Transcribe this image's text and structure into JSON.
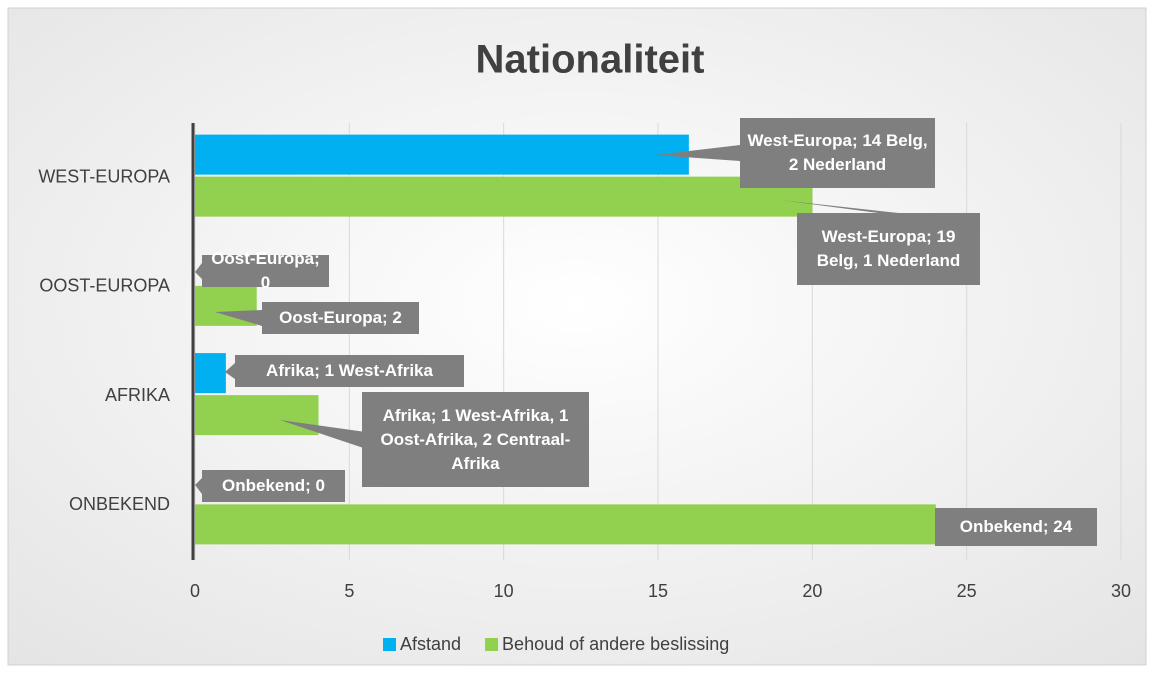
{
  "chart_data": {
    "type": "bar",
    "orientation": "horizontal",
    "title": "Nationaliteit",
    "categories": [
      "WEST-EUROPA",
      "OOST-EUROPA",
      "AFRIKA",
      "ONBEKEND"
    ],
    "series": [
      {
        "name": "Afstand",
        "color": "#00b0f0",
        "values": [
          16,
          0,
          1,
          0
        ],
        "value_labels": [
          "West-Europa; 14 Belg, 2 Nederland",
          "Oost-Europa; 0",
          "Afrika; 1 West-Afrika",
          "Onbekend; 0"
        ]
      },
      {
        "name": "Behoud of andere beslissing",
        "color": "#92d050",
        "values": [
          20,
          2,
          4,
          24
        ],
        "value_labels": [
          "West-Europa; 19 Belg, 1 Nederland",
          "Oost-Europa; 2",
          "Afrika; 1 West-Afrika, 1 Oost-Afrika, 2 Centraal-Afrika",
          "Onbekend; 24"
        ]
      }
    ],
    "xlim": [
      0,
      30
    ],
    "xticks": [
      0,
      5,
      10,
      15,
      20,
      25,
      30
    ],
    "grid": true,
    "legend": "bottom"
  }
}
